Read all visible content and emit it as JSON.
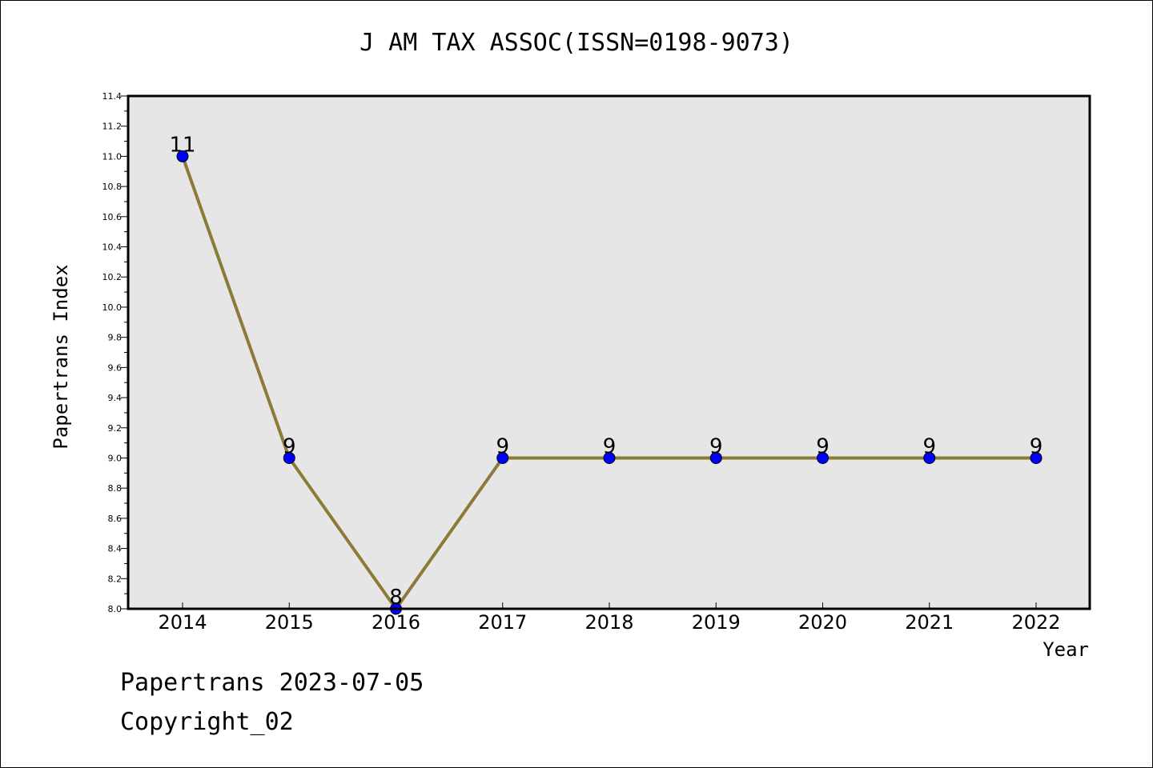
{
  "chart_data": {
    "type": "line",
    "title": "J AM TAX ASSOC(ISSN=0198-9073)",
    "xlabel": "Year",
    "ylabel": "Papertrans Index",
    "categories": [
      "2014",
      "2015",
      "2016",
      "2017",
      "2018",
      "2019",
      "2020",
      "2021",
      "2022"
    ],
    "series": [
      {
        "values": [
          11,
          9,
          8,
          9,
          9,
          9,
          9,
          9,
          9
        ],
        "data_labels": [
          "11",
          "9",
          "8",
          "9",
          "9",
          "9",
          "9",
          "9",
          "9"
        ],
        "line_color": "#8c7a38",
        "marker_color": "#0000ff"
      }
    ],
    "ylim": [
      8.0,
      11.4
    ],
    "y_ticks": [
      "8.0",
      "8.2",
      "8.4",
      "8.6",
      "8.8",
      "9.0",
      "9.2",
      "9.4",
      "9.6",
      "9.8",
      "10.0",
      "10.2",
      "10.4",
      "10.6",
      "10.8",
      "11.0",
      "11.2",
      "11.4"
    ],
    "grid": false,
    "plot_background": "#e6e6e6"
  },
  "footer": {
    "line1": "Papertrans 2023-07-05",
    "line2": "Copyright_02"
  }
}
